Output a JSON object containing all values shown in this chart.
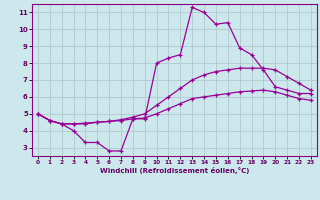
{
  "xlabel": "Windchill (Refroidissement éolien,°C)",
  "xlim": [
    -0.5,
    23.5
  ],
  "ylim": [
    2.5,
    11.5
  ],
  "xticks": [
    0,
    1,
    2,
    3,
    4,
    5,
    6,
    7,
    8,
    9,
    10,
    11,
    12,
    13,
    14,
    15,
    16,
    17,
    18,
    19,
    20,
    21,
    22,
    23
  ],
  "yticks": [
    3,
    4,
    5,
    6,
    7,
    8,
    9,
    10,
    11
  ],
  "background_color": "#cce8ec",
  "grid_color": "#b0c8cc",
  "line_color": "#990099",
  "lines": [
    {
      "x": [
        0,
        1,
        2,
        3,
        4,
        5,
        6,
        7,
        8,
        9,
        10,
        11,
        12,
        13,
        14,
        15,
        16,
        17,
        18,
        19,
        20,
        21,
        22,
        23
      ],
      "y": [
        5.0,
        4.6,
        4.4,
        4.4,
        4.45,
        4.5,
        4.55,
        4.6,
        4.7,
        4.75,
        5.0,
        5.3,
        5.6,
        5.9,
        6.0,
        6.1,
        6.2,
        6.3,
        6.35,
        6.4,
        6.3,
        6.1,
        5.9,
        5.8
      ]
    },
    {
      "x": [
        0,
        1,
        2,
        3,
        4,
        5,
        6,
        7,
        8,
        9,
        10,
        11,
        12,
        13,
        14,
        15,
        16,
        17,
        18,
        19,
        20,
        21,
        22,
        23
      ],
      "y": [
        5.0,
        4.6,
        4.4,
        4.4,
        4.4,
        4.5,
        4.55,
        4.65,
        4.8,
        5.0,
        5.5,
        6.0,
        6.5,
        7.0,
        7.3,
        7.5,
        7.6,
        7.7,
        7.7,
        7.7,
        7.6,
        7.2,
        6.8,
        6.4
      ]
    },
    {
      "x": [
        0,
        1,
        2,
        3,
        4,
        5,
        6,
        7,
        8,
        9,
        10,
        11,
        12,
        13,
        14,
        15,
        16,
        17,
        18,
        19,
        20,
        21,
        22,
        23
      ],
      "y": [
        5.0,
        4.6,
        4.4,
        4.0,
        3.3,
        3.3,
        2.8,
        2.8,
        4.7,
        4.7,
        8.0,
        8.3,
        8.5,
        11.3,
        11.0,
        10.3,
        10.4,
        8.9,
        8.5,
        7.6,
        6.6,
        6.4,
        6.2,
        6.2
      ]
    }
  ]
}
